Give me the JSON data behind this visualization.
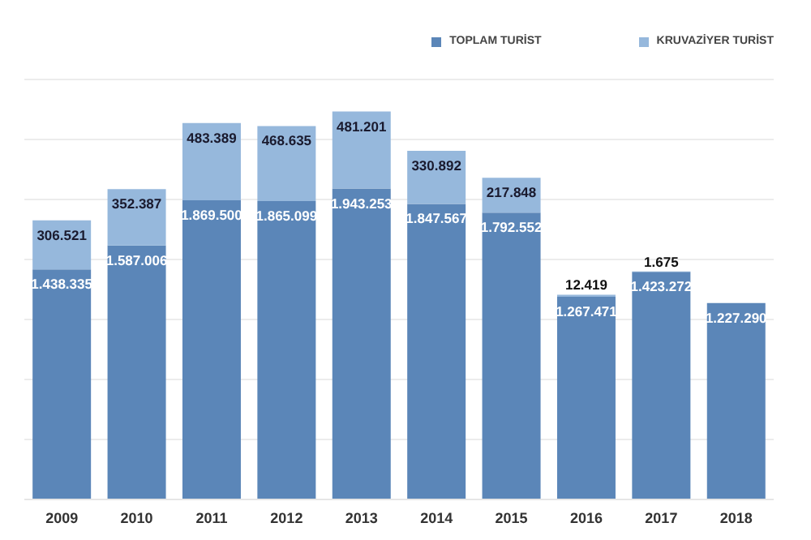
{
  "chart_data": {
    "type": "bar",
    "stacked": true,
    "categories": [
      "2009",
      "2010",
      "2011",
      "2012",
      "2013",
      "2014",
      "2015",
      "2016",
      "2017",
      "2018"
    ],
    "series": [
      {
        "name": "TOPLAM TURİST",
        "color": "#5b86b8",
        "values": [
          1438335,
          1587006,
          1869500,
          1865099,
          1943253,
          1847567,
          1792552,
          1267471,
          1423272,
          1227290
        ],
        "value_labels": [
          "1.438.335",
          "1.587.006",
          "1.869.500",
          "1.865.099",
          "1.943.253",
          "1.847.567",
          "1.792.552",
          "1.267.471",
          "1.423.272",
          "1.227.290"
        ]
      },
      {
        "name": "KRUVAZİYER TURİST",
        "color": "#96b8dc",
        "values": [
          306521,
          352387,
          483389,
          468635,
          481201,
          330892,
          217848,
          12419,
          1675,
          null
        ],
        "value_labels": [
          "306.521",
          "352.387",
          "483.389",
          "468.635",
          "481.201",
          "330.892",
          "217.848",
          "12.419",
          "1.675",
          null
        ]
      }
    ],
    "ylim": [
      0,
      2625000
    ],
    "yticks": [
      {
        "value": 0,
        "label": null
      },
      {
        "value": 375000,
        "label": null
      },
      {
        "value": 750000,
        "label": null
      },
      {
        "value": 1125000,
        "label": null
      },
      {
        "value": 1500000,
        "label": null
      },
      {
        "value": 1875000,
        "label": null
      },
      {
        "value": 2250000,
        "label": null
      },
      {
        "value": 2625000,
        "label": null
      }
    ],
    "grid": "y",
    "legend": "top right",
    "tick_labels": "x"
  }
}
